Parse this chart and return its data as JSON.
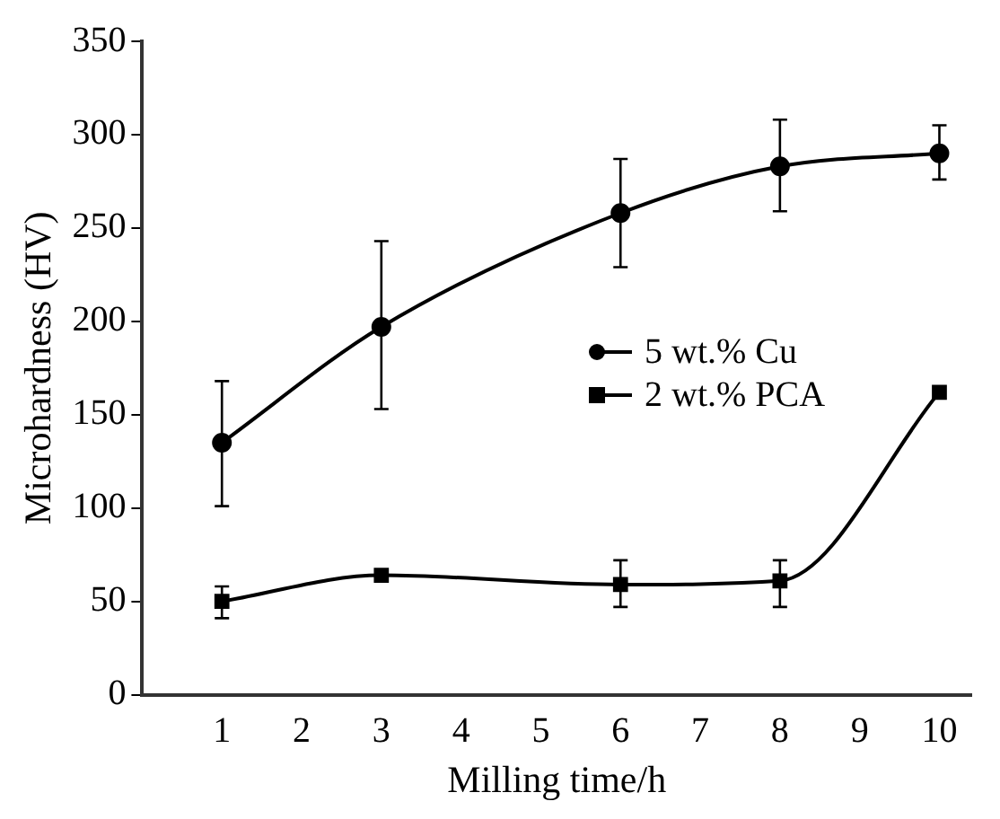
{
  "chart_data": {
    "type": "line",
    "xlabel": "Milling time/h",
    "ylabel": "Microhardness (HV)",
    "xlim": [
      0,
      10.4
    ],
    "xticks": [
      1,
      2,
      3,
      4,
      5,
      6,
      7,
      8,
      9,
      10
    ],
    "ylim": [
      0,
      350
    ],
    "yticks": [
      0,
      50,
      100,
      150,
      200,
      250,
      300,
      350
    ],
    "grid": false,
    "legend": "right",
    "line_style": "solid",
    "series": [
      {
        "name": "5 wt.% Cu",
        "color": "#000000",
        "marker": "circle",
        "x": [
          1,
          3,
          6,
          8,
          10
        ],
        "values": [
          135,
          197,
          258,
          283,
          290
        ],
        "errors": [
          [
            101,
            168
          ],
          [
            153,
            243
          ],
          [
            229,
            287
          ],
          [
            259,
            308
          ],
          [
            276,
            305
          ]
        ]
      },
      {
        "name": "2 wt.% PCA",
        "color": "#000000",
        "marker": "square",
        "x": [
          1,
          3,
          6,
          8,
          10
        ],
        "values": [
          50,
          64,
          59,
          61,
          162
        ],
        "errors": [
          [
            41,
            58
          ],
          null,
          [
            47,
            72
          ],
          [
            47,
            72
          ],
          null
        ]
      }
    ]
  }
}
